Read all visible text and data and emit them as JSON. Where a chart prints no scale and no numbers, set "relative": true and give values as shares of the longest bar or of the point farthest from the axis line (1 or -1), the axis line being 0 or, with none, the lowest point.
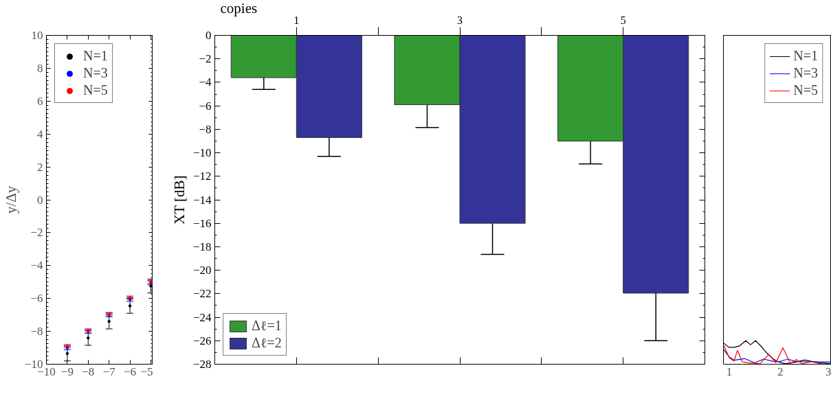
{
  "chart_data": [
    {
      "type": "scatter",
      "ylabel": "y/Δy",
      "x": [
        -9,
        -8,
        -7,
        -6,
        -5
      ],
      "xlim": [
        -10,
        -4.9
      ],
      "xticks": [
        -10,
        -9,
        -8,
        -7,
        -6,
        -5
      ],
      "ylim": [
        -10,
        10
      ],
      "yticks": [
        -10,
        -8,
        -6,
        -4,
        -2,
        0,
        2,
        4,
        6,
        8,
        10
      ],
      "legend": "top left",
      "marker": "circle",
      "grid": false,
      "series": [
        {
          "name": "N=1",
          "color": "#000000",
          "values": [
            -9.35,
            -8.4,
            -7.4,
            -6.45,
            -5.25
          ],
          "errors": [
            0.45,
            0.45,
            0.45,
            0.45,
            0.42
          ]
        },
        {
          "name": "N=3",
          "color": "#0000ff",
          "values": [
            -9.0,
            -8.0,
            -7.0,
            -6.05,
            -5.05
          ],
          "errors": [
            0.12,
            0.12,
            0.12,
            0.12,
            0.12
          ]
        },
        {
          "name": "N=5",
          "color": "#ff0000",
          "values": [
            -8.9,
            -7.95,
            -6.95,
            -5.95,
            -5.0
          ],
          "errors": [
            0.1,
            0.1,
            0.1,
            0.1,
            0.1
          ]
        }
      ]
    },
    {
      "type": "bar",
      "xlabel": "copies",
      "ylabel": "XT [dB]",
      "categories": [
        "1",
        "3",
        "5"
      ],
      "ylim": [
        -28,
        0
      ],
      "yticks": [
        -28,
        -26,
        -24,
        -22,
        -20,
        -18,
        -16,
        -14,
        -12,
        -10,
        -8,
        -6,
        -4,
        -2,
        0
      ],
      "legend": "bottom left",
      "grid": false,
      "series": [
        {
          "name": "Δℓ=1",
          "color": "#339933",
          "values": [
            -3.6,
            -5.9,
            -9.0
          ],
          "errors": [
            1.0,
            1.95,
            1.95
          ]
        },
        {
          "name": "Δℓ=2",
          "color": "#333399",
          "values": [
            -8.7,
            -16.0,
            -21.95
          ],
          "errors": [
            1.6,
            2.65,
            4.05
          ]
        }
      ]
    },
    {
      "type": "line",
      "relative": true,
      "xlim": [
        0.885,
        3
      ],
      "xticks": [
        1,
        2,
        3
      ],
      "tick_labels": "x",
      "legend": "top right",
      "grid": false,
      "series": [
        {
          "name": "N=1",
          "color": "#000000",
          "x": [
            0.885,
            0.99,
            1.1,
            1.2,
            1.325,
            1.415,
            1.515,
            1.625,
            1.75,
            1.875,
            1.975,
            2.1,
            2.3,
            2.475,
            2.6,
            2.75,
            2.99
          ],
          "values": [
            0.91,
            0.72,
            0.72,
            0.78,
            1,
            0.83,
            1,
            0.76,
            0.44,
            0.2,
            0.09,
            0.02,
            0.09,
            0.18,
            0.13,
            0.06,
            0.02
          ]
        },
        {
          "name": "N=3",
          "color": "#0000ff",
          "x": [
            0.885,
            1.0,
            1.1,
            1.3,
            1.5,
            1.675,
            1.85,
            1.975,
            2.15,
            2.3,
            2.5,
            2.99
          ],
          "values": [
            0.64,
            0.31,
            0.17,
            0.24,
            0.06,
            0.22,
            0.13,
            0.11,
            0.22,
            0.11,
            0.11,
            0.09
          ]
        },
        {
          "name": "N=5",
          "color": "#ff0000",
          "x": [
            0.885,
            1.0,
            1.09,
            1.16,
            1.25,
            1.35,
            1.6,
            1.775,
            1.91,
            2.05,
            2.2,
            2.315,
            2.425,
            2.6,
            2.8
          ],
          "values": [
            0.83,
            0.28,
            0.13,
            0.59,
            0.11,
            0.06,
            0.02,
            0.42,
            0.06,
            0.7,
            0.02,
            0.2,
            0.02,
            0.11,
            0.02
          ]
        }
      ]
    }
  ]
}
